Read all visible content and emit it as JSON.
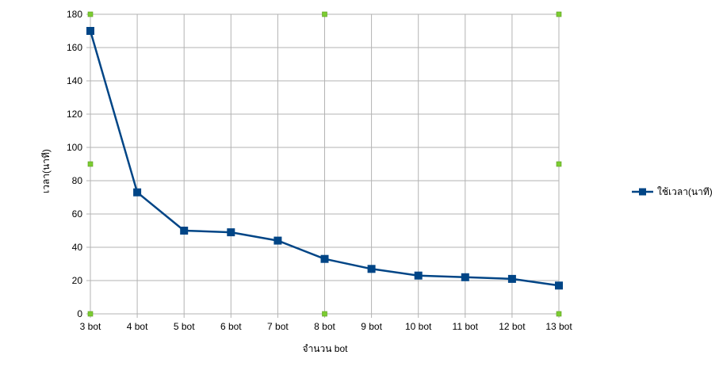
{
  "chart_data": {
    "type": "line",
    "title": "",
    "xlabel": "จำนวน bot",
    "ylabel": "เวลา(นาที)",
    "categories": [
      "3 bot",
      "4 bot",
      "5 bot",
      "6 bot",
      "7 bot",
      "8 bot",
      "9 bot",
      "10 bot",
      "11 bot",
      "12 bot",
      "13 bot"
    ],
    "series": [
      {
        "name": "ใช้เวลา(นาที)",
        "values": [
          170,
          73,
          50,
          49,
          44,
          33,
          27,
          23,
          22,
          21,
          17
        ],
        "color": "#004586",
        "marker": "square"
      }
    ],
    "ylim": [
      0,
      180
    ],
    "yticks": [
      0,
      20,
      40,
      60,
      80,
      100,
      120,
      140,
      160,
      180
    ],
    "grid": true,
    "legend": "right",
    "grid_color": "#b3b3b3",
    "selection_handle_color": "#7ccd32"
  }
}
